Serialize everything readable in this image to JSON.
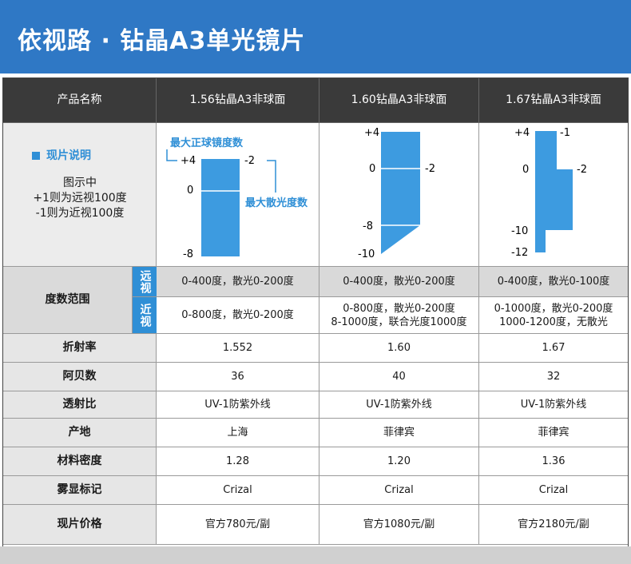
{
  "title": "依视路 · 钻晶A3单光镜片",
  "header": {
    "name_label": "产品名称",
    "products": [
      "1.56钻晶A3非球面",
      "1.60钻晶A3非球面",
      "1.67钻晶A3非球面"
    ]
  },
  "legend": {
    "title": "现片说明",
    "line1": "图示中",
    "line2": "+1则为远视100度",
    "line3": "-1则为近视100度",
    "max_sphere": "最大正球镜度数",
    "max_cyl": "最大散光度数"
  },
  "diagrams": [
    {
      "top_label": "+4",
      "zero_label": "0",
      "bottom_label": "-8",
      "cyl_label": "-2"
    },
    {
      "top_label": "+4",
      "zero_label": "0",
      "mid_label": "-8",
      "bottom_label": "-10",
      "cyl_label": "-2"
    },
    {
      "top_label": "+4",
      "top_right_label": "-1",
      "zero_label": "0",
      "cyl_label": "-2",
      "mid_label": "-10",
      "bottom_label": "-12"
    }
  ],
  "range": {
    "label": "度数范围",
    "far_tag": "远视",
    "near_tag": "近视",
    "far": [
      "0-400度，散光0-200度",
      "0-400度，散光0-200度",
      "0-400度，散光0-100度"
    ],
    "near": [
      [
        "0-800度，散光0-200度"
      ],
      [
        "0-800度，散光0-200度",
        "8-1000度，联合光度1000度"
      ],
      [
        "0-1000度，散光0-200度",
        "1000-1200度，无散光"
      ]
    ]
  },
  "rows": [
    {
      "label": "折射率",
      "values": [
        "1.552",
        "1.60",
        "1.67"
      ]
    },
    {
      "label": "阿贝数",
      "values": [
        "36",
        "40",
        "32"
      ]
    },
    {
      "label": "透射比",
      "values": [
        "UV-1防紫外线",
        "UV-1防紫外线",
        "UV-1防紫外线"
      ]
    },
    {
      "label": "产地",
      "values": [
        "上海",
        "菲律宾",
        "菲律宾"
      ]
    },
    {
      "label": "材料密度",
      "values": [
        "1.28",
        "1.20",
        "1.36"
      ]
    },
    {
      "label": "雾显标记",
      "values": [
        "Crizal",
        "Crizal",
        "Crizal"
      ]
    },
    {
      "label": "现片价格",
      "values": [
        "官方780元/副",
        "官方1080元/副",
        "官方2180元/副"
      ]
    }
  ],
  "colors": {
    "accent": "#2f78c5",
    "bar": "#3d9be0",
    "header_bg": "#3a3a3a"
  }
}
